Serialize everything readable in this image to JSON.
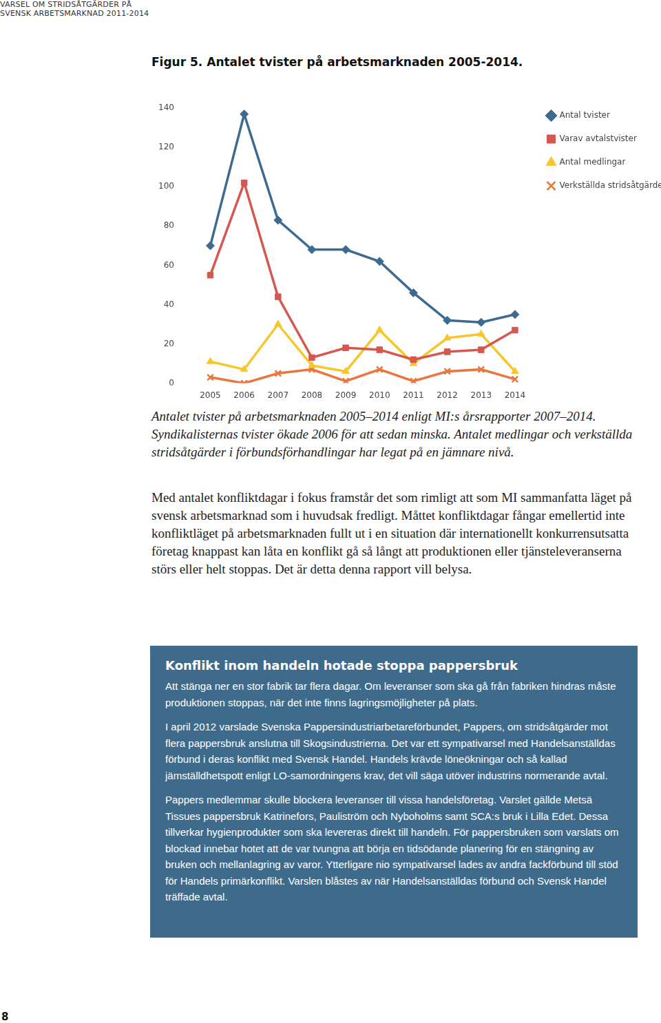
{
  "header": {
    "lines": [
      "VARSEL OM STRIDSÅTGÄRDER PÅ",
      "SVENSK ARBETSMARKNAD 2011-2014"
    ]
  },
  "figure_title": "Figur 5. Antalet tvister på arbetsmarknaden 2005-2014.",
  "chart_data": {
    "type": "line",
    "categories": [
      "2005",
      "2006",
      "2007",
      "2008",
      "2009",
      "2010",
      "2011",
      "2012",
      "2013",
      "2014"
    ],
    "series": [
      {
        "name": "Antal tvister",
        "color": "#3d6a91",
        "marker": "diamond",
        "values": [
          70,
          137,
          83,
          68,
          68,
          62,
          46,
          32,
          31,
          35
        ]
      },
      {
        "name": "Varav avtalstvister",
        "color": "#d6574e",
        "marker": "square",
        "values": [
          55,
          102,
          44,
          13,
          18,
          17,
          12,
          16,
          17,
          27
        ]
      },
      {
        "name": "Antal medlingar",
        "color": "#f6c62b",
        "marker": "triangle",
        "values": [
          11,
          7,
          30,
          9,
          6,
          27,
          10,
          23,
          25,
          6
        ]
      },
      {
        "name": "Verkställda stridsåtgärder",
        "color": "#e9773d",
        "marker": "x",
        "values": [
          3,
          0,
          5,
          7,
          1,
          7,
          1,
          6,
          7,
          2
        ]
      }
    ],
    "ylim": [
      0,
      140
    ],
    "yticks": [
      0,
      20,
      40,
      60,
      80,
      100,
      120,
      140
    ],
    "grid": false,
    "legend": "top-right"
  },
  "caption": "Antalet tvister på arbetsmarknaden 2005–2014 enligt MI:s årsrapporter 2007–2014. Syndikalisternas tvister ökade 2006 för att sedan minska. Antalet medlingar och verkställda stridsåtgärder i förbundsförhandlingar har legat på en jämnare nivå.",
  "body": "Med antalet konfliktdagar i fokus framstår det som rimligt att som MI sammanfatta läget på svensk arbetsmarknad som i huvudsak fredligt. Måttet konfliktdagar fångar emellertid inte konfliktläget på arbetsmarknaden fullt ut i en situation där internationellt konkurrensutsatta företag knappast kan låta en konflikt gå så långt att produktionen eller tjänsteleveranserna störs eller helt stoppas. Det är detta denna rapport vill belysa.",
  "box": {
    "title": "Konflikt inom handeln hotade stoppa pappersbruk",
    "paragraphs": [
      "Att stänga ner en stor fabrik tar flera dagar. Om leveranser som ska gå från fabriken hindras måste produktionen stoppas, när det inte finns lagringsmöjligheter på plats.",
      "I april 2012 varslade Svenska Pappersindustriarbetareförbundet, Pappers, om stridsåtgärder mot flera pappersbruk anslutna till Skogsindustrierna. Det var ett sympativarsel med Handelsanställdas förbund i deras konflikt med Svensk Handel. Handels krävde löneökningar och så kallad jämställdhetspott enligt LO-samordningens krav, det vill säga utöver industrins normerande avtal.",
      "Pappers medlemmar skulle blockera leveranser till vissa handelsföretag. Varslet gällde Metsä Tissues pappersbruk Katrinefors, Pauliström och Nyboholms samt SCA:s bruk i Lilla Edet. Dessa tillverkar hygienprodukter som ska levereras direkt till handeln. För pappersbruken som varslats om blockad innebar hotet att de var tvungna att börja en tidsödande planering för en stängning av bruken och mellanlagring av varor. Ytterligare nio sympativarsel lades av andra fackförbund till stöd för Handels primärkonflikt. Varslen blåstes av när Handelsanställdas förbund och Svensk Handel träffade avtal."
    ]
  },
  "page_number": 8
}
